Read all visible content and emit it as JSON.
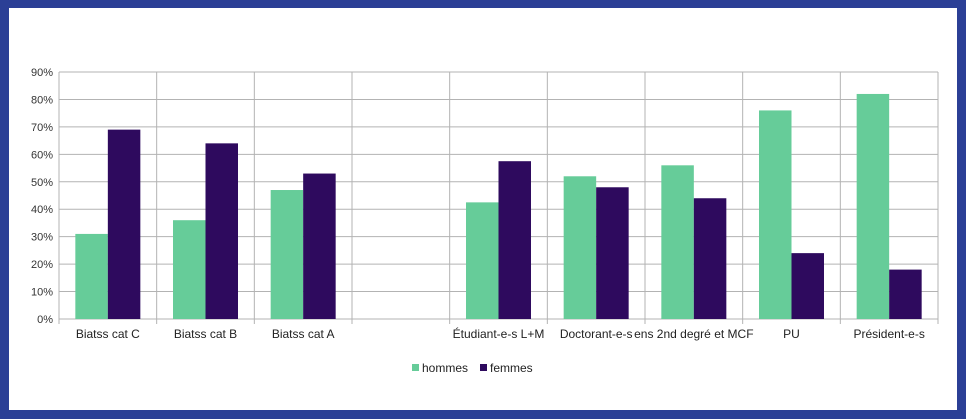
{
  "chart_data": {
    "type": "bar",
    "categories": [
      "Biatss cat C",
      "Biatss cat B",
      "Biatss cat A",
      "",
      "Étudiant-e-s L+M",
      "Doctorant-e-s",
      "ens 2nd degré et MCF",
      "PU",
      "Président-e-s"
    ],
    "series": [
      {
        "name": "hommes",
        "values": [
          31,
          36,
          47,
          null,
          42.5,
          52,
          56,
          76,
          82
        ]
      },
      {
        "name": "femmes",
        "values": [
          69,
          64,
          53,
          null,
          57.5,
          48,
          44,
          24,
          18
        ]
      }
    ],
    "ylim": [
      0,
      90
    ],
    "yticks": [
      "0%",
      "10%",
      "20%",
      "30%",
      "40%",
      "50%",
      "60%",
      "70%",
      "80%",
      "90%"
    ],
    "grid": true,
    "legend_position": "bottom",
    "colors": {
      "hommes": "#66cc99",
      "femmes": "#2e0a5e",
      "grid": "#b3b3b3",
      "frame": "#2b3f96"
    }
  }
}
